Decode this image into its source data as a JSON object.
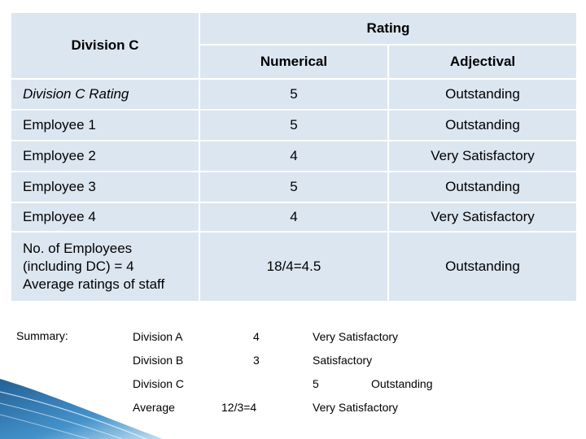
{
  "table": {
    "corner_label": "Division C",
    "rating_header": "Rating",
    "numerical_header": "Numerical",
    "adjectival_header": "Adjectival",
    "rows": [
      {
        "label": "Division C Rating",
        "numerical": "5",
        "adjectival": "Outstanding"
      },
      {
        "label": "Employee 1",
        "numerical": "5",
        "adjectival": "Outstanding"
      },
      {
        "label": "Employee 2",
        "numerical": "4",
        "adjectival": "Very Satisfactory"
      },
      {
        "label": "Employee 3",
        "numerical": "5",
        "adjectival": "Outstanding"
      },
      {
        "label": "Employee 4",
        "numerical": "4",
        "adjectival": "Very Satisfactory"
      }
    ],
    "summary_row": {
      "label_line1": "No. of Employees",
      "label_line2": "(including DC) = 4",
      "label_line3": "Average ratings of staff",
      "numerical": "18/4=4.5",
      "adjectival": "Outstanding"
    }
  },
  "summary": {
    "title": "Summary:",
    "rows": [
      {
        "division": "Division A",
        "numerical": "4",
        "adjectival": "Very Satisfactory"
      },
      {
        "division": "Division B",
        "numerical": "3",
        "adjectival": "Satisfactory"
      },
      {
        "division": "Division C",
        "numerical": "5",
        "adjectival": "Outstanding"
      },
      {
        "division": "Average",
        "numerical": "12/3=4",
        "adjectival": "Very Satisfactory"
      }
    ]
  },
  "colors": {
    "cell_background": "#dce6f1",
    "accent": "#1f6fa8"
  }
}
